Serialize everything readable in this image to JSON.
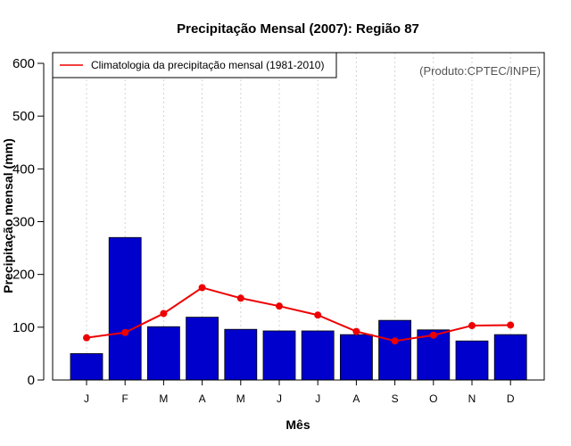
{
  "chart_data": {
    "type": "bar",
    "title": "Precipitação Mensal (2007): Região 87",
    "xlabel": "Mês",
    "ylabel": "Precipitação mensal (mm)",
    "ylim": [
      0,
      600
    ],
    "yticks": [
      0,
      100,
      200,
      300,
      400,
      500,
      600
    ],
    "grid": "vertical dotted",
    "categories": [
      "J",
      "F",
      "M",
      "A",
      "M",
      "J",
      "J",
      "A",
      "S",
      "O",
      "N",
      "D"
    ],
    "series": [
      {
        "name": "Precipitação mensal (2007)",
        "type": "bar",
        "color": "#0000cd",
        "values": [
          50,
          270,
          101,
          119,
          96,
          93,
          93,
          86,
          113,
          95,
          74,
          86
        ]
      },
      {
        "name": "Climatologia da precipitação mensal (1981-2010)",
        "type": "line",
        "color": "#ee0000",
        "values": [
          80,
          90,
          126,
          175,
          155,
          140,
          123,
          92,
          74,
          85,
          103,
          104
        ]
      }
    ],
    "legend": {
      "position": "top-left",
      "entries": [
        "Climatologia da precipitação mensal (1981-2010)"
      ]
    },
    "annotation": "(Produto:CPTEC/INPE)"
  }
}
